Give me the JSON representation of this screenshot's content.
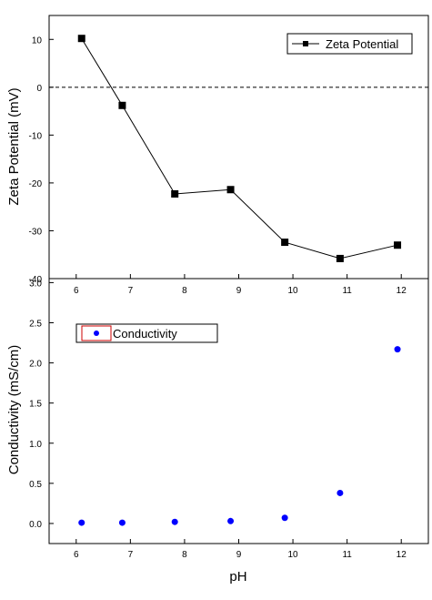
{
  "chart_data": [
    {
      "type": "line",
      "ylabel": "Zeta Potential (mV)",
      "xlim": [
        5.5,
        12.5
      ],
      "ylim": [
        -40,
        15
      ],
      "yticks": [
        10,
        0,
        -10,
        -20,
        -30,
        -40
      ],
      "xticks": [
        6,
        7,
        8,
        9,
        10,
        11,
        12
      ],
      "reference_line": {
        "y": 0,
        "style": "dashed"
      },
      "legend_position": "top-right",
      "series": [
        {
          "name": "Zeta Potential",
          "marker": "square",
          "color": "#000000",
          "x": [
            6.1,
            6.85,
            7.82,
            8.85,
            9.85,
            10.87,
            11.93
          ],
          "y": [
            10.2,
            -3.8,
            -22.3,
            -21.4,
            -32.4,
            -35.8,
            -33.0
          ]
        }
      ]
    },
    {
      "type": "scatter",
      "xlabel": "pH",
      "ylabel": "Conductivity (mS/cm)",
      "xlim": [
        5.5,
        12.5
      ],
      "ylim": [
        -0.25,
        3.05
      ],
      "yticks": [
        "3.0",
        "2.5",
        "2.0",
        "1.5",
        "1.0",
        "0.5",
        "0.0"
      ],
      "xticks": [
        6,
        7,
        8,
        9,
        10,
        11,
        12
      ],
      "legend_position": "top-left",
      "series": [
        {
          "name": "Conductivity",
          "marker": "circle",
          "color": "#0000ff",
          "x": [
            6.1,
            6.85,
            7.82,
            8.85,
            9.85,
            10.87,
            11.93
          ],
          "y": [
            0.01,
            0.01,
            0.02,
            0.03,
            0.07,
            0.38,
            2.17
          ]
        }
      ]
    }
  ]
}
